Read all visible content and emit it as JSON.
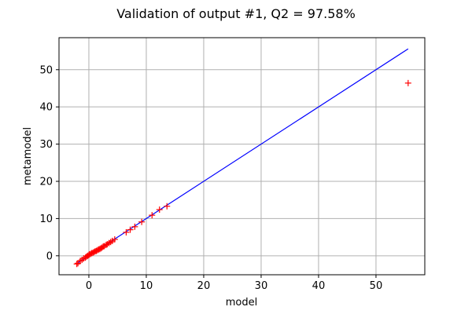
{
  "chart_data": {
    "type": "scatter",
    "title": "Validation of output #1, Q2 = 97.58%",
    "xlabel": "model",
    "ylabel": "metamodel",
    "xlim": [
      -5.2,
      58.5
    ],
    "ylim": [
      -5.1,
      58.6
    ],
    "xticks": [
      0,
      10,
      20,
      30,
      40,
      50
    ],
    "yticks": [
      0,
      10,
      20,
      30,
      40,
      50
    ],
    "grid": true,
    "series": [
      {
        "kind": "line",
        "color": "#0000ff",
        "x": [
          -2.0,
          55.6
        ],
        "y": [
          -2.0,
          55.6
        ]
      },
      {
        "kind": "scatter",
        "marker": "+",
        "color": "#ff0000",
        "x": [
          -2.1,
          -1.9,
          -1.5,
          -1.2,
          -0.9,
          -0.6,
          -0.4,
          -0.2,
          0.0,
          0.1,
          0.3,
          0.5,
          0.7,
          0.9,
          1.1,
          1.3,
          1.5,
          1.7,
          1.9,
          2.1,
          2.3,
          2.5,
          2.7,
          3.0,
          3.2,
          3.5,
          3.8,
          4.1,
          4.5,
          6.5,
          7.2,
          8.0,
          9.2,
          11.0,
          12.3,
          13.6,
          55.6
        ],
        "y": [
          -2.2,
          -2.0,
          -1.4,
          -1.1,
          -0.7,
          -0.5,
          -0.2,
          0.0,
          0.2,
          0.4,
          0.5,
          0.7,
          0.8,
          1.0,
          1.2,
          1.3,
          1.5,
          1.7,
          1.8,
          2.0,
          2.2,
          2.5,
          2.6,
          2.9,
          3.1,
          3.4,
          3.7,
          4.0,
          4.4,
          6.3,
          7.0,
          7.8,
          9.1,
          10.9,
          12.4,
          13.3,
          46.4
        ]
      }
    ]
  }
}
